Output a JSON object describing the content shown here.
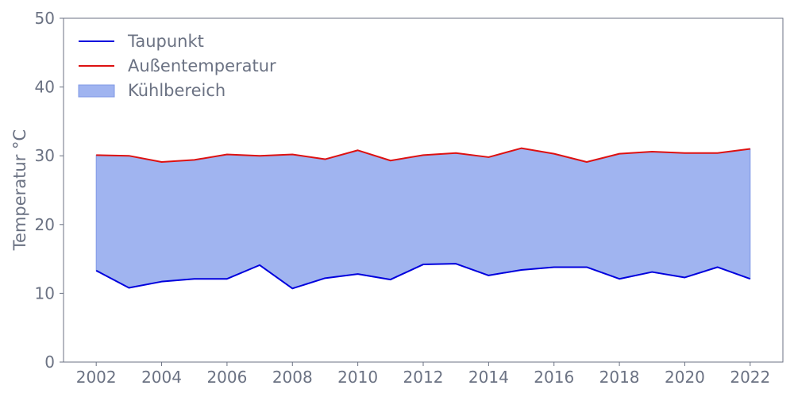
{
  "chart_data": {
    "type": "area",
    "xlabel": "",
    "ylabel": "Temperatur °C",
    "xlim": [
      2001,
      2023
    ],
    "ylim": [
      0,
      50
    ],
    "xticks": [
      2002,
      2004,
      2006,
      2008,
      2010,
      2012,
      2014,
      2016,
      2018,
      2020,
      2022
    ],
    "yticks": [
      0,
      10,
      20,
      30,
      40,
      50
    ],
    "grid": false,
    "legend_position": "top-left",
    "x": [
      2002,
      2003,
      2004,
      2005,
      2006,
      2007,
      2008,
      2009,
      2010,
      2011,
      2012,
      2013,
      2014,
      2015,
      2016,
      2017,
      2018,
      2019,
      2020,
      2021,
      2022
    ],
    "series": [
      {
        "name": "Taupunkt",
        "kind": "line",
        "color": "#0000dd",
        "values": [
          13.3,
          10.8,
          11.7,
          12.1,
          12.1,
          14.1,
          10.7,
          12.2,
          12.8,
          12.0,
          14.2,
          14.3,
          12.6,
          13.4,
          13.8,
          13.8,
          12.1,
          13.1,
          12.3,
          13.8,
          12.1
        ]
      },
      {
        "name": "Außentemperatur",
        "kind": "line",
        "color": "#dd1111",
        "values": [
          30.1,
          30.0,
          29.1,
          29.4,
          30.2,
          30.0,
          30.2,
          29.5,
          30.8,
          29.3,
          30.1,
          30.4,
          29.8,
          31.1,
          30.3,
          29.1,
          30.3,
          30.6,
          30.4,
          30.4,
          31.0
        ]
      }
    ],
    "fill_between": {
      "name": "Kühlbereich",
      "color": "#a0b4f0",
      "edge_color": "#7f98e6",
      "lower": "Taupunkt",
      "upper": "Außentemperatur"
    },
    "legend": [
      "Taupunkt",
      "Außentemperatur",
      "Kühlbereich"
    ]
  }
}
